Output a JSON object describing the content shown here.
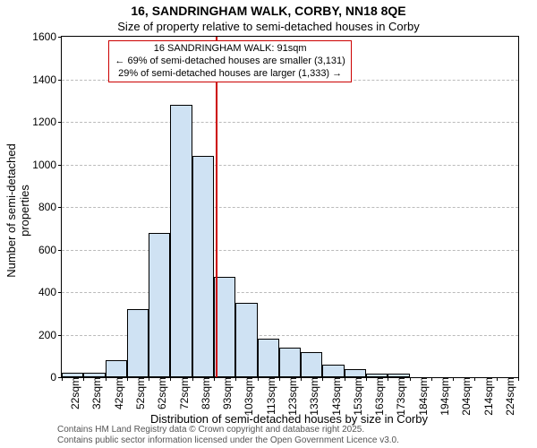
{
  "title": "16, SANDRINGHAM WALK, CORBY, NN18 8QE",
  "subtitle": "Size of property relative to semi-detached houses in Corby",
  "title_fontsize": 14,
  "subtitle_fontsize": 13,
  "x_axis_label": "Distribution of semi-detached houses by size in Corby",
  "y_axis_label": "Number of semi-detached properties",
  "annotation": {
    "line1": "16 SANDRINGHAM WALK: 91sqm",
    "line2": "← 69% of semi-detached houses are smaller (3,131)",
    "line3": "29% of semi-detached houses are larger (1,333) →",
    "border_color": "#cc0000"
  },
  "reference_line": {
    "x_value": 91,
    "color": "#cc0000"
  },
  "histogram": {
    "type": "histogram",
    "x_start": 20,
    "x_end": 230,
    "bin_width": 10,
    "ylim": [
      0,
      1600
    ],
    "ytick_step": 200,
    "bar_color": "#cfe2f3",
    "bar_border": "#000000",
    "grid_color": "#bbbbbb",
    "background_color": "#ffffff",
    "x_tick_labels": [
      "22sqm",
      "32sqm",
      "42sqm",
      "52sqm",
      "62sqm",
      "72sqm",
      "83sqm",
      "93sqm",
      "103sqm",
      "113sqm",
      "123sqm",
      "133sqm",
      "143sqm",
      "153sqm",
      "163sqm",
      "173sqm",
      "184sqm",
      "194sqm",
      "204sqm",
      "214sqm",
      "224sqm"
    ],
    "values": [
      20,
      20,
      80,
      320,
      680,
      1280,
      1040,
      470,
      350,
      180,
      140,
      120,
      60,
      40,
      15,
      15,
      0,
      0,
      0,
      0,
      0
    ]
  },
  "footer": {
    "line1": "Contains HM Land Registry data © Crown copyright and database right 2025.",
    "line2": "Contains public sector information licensed under the Open Government Licence v3.0."
  }
}
